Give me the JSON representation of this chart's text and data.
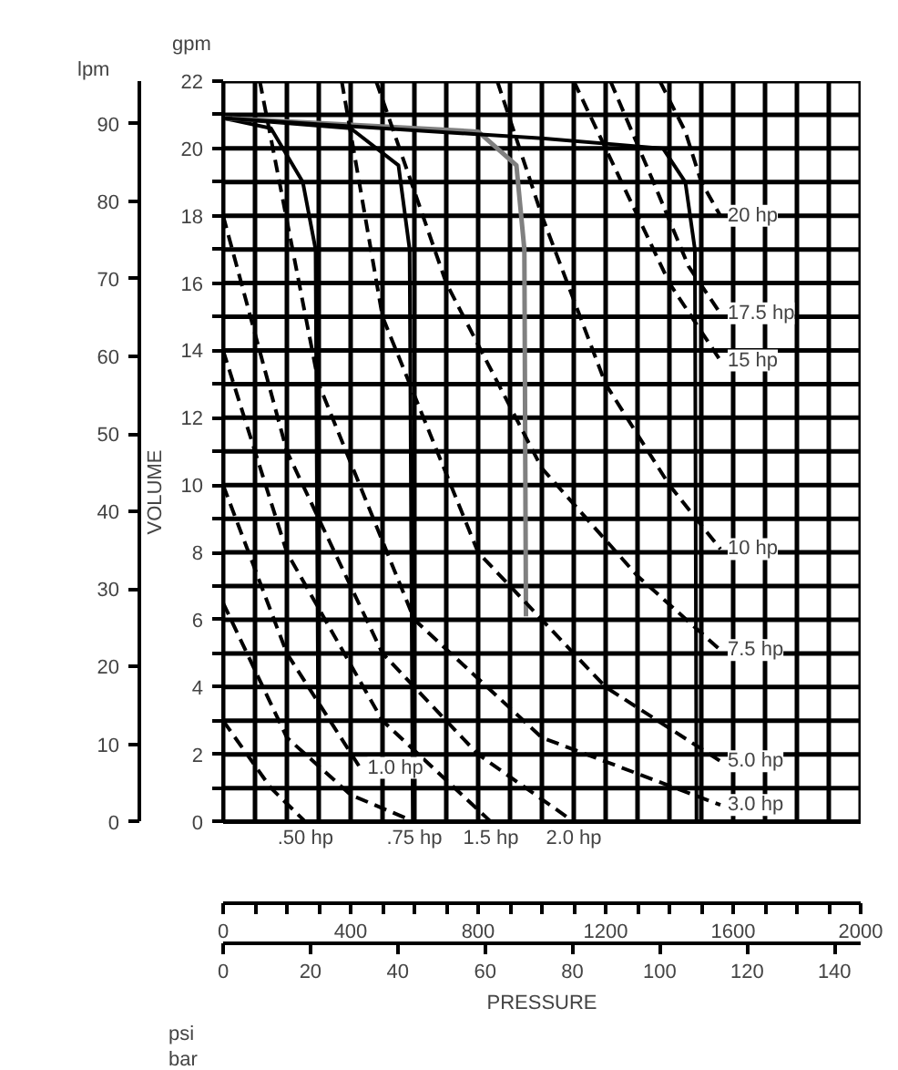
{
  "chart_data": {
    "type": "line",
    "xlabel": "PRESSURE",
    "ylabel": "VOLUME",
    "annotations": [
      "lpm",
      "gpm",
      "psi",
      "bar"
    ],
    "xlim": [
      0,
      2000
    ],
    "ylim": [
      0,
      22
    ],
    "x2lim": [
      0,
      146
    ],
    "y2lim": [
      0,
      95.5
    ],
    "xticks": [
      0,
      {
        "value": 100,
        "label": null
      },
      {
        "value": 200,
        "label": null
      },
      {
        "value": 300,
        "label": null
      },
      400,
      {
        "value": 500,
        "label": null
      },
      {
        "value": 600,
        "label": null
      },
      {
        "value": 700,
        "label": null
      },
      800,
      {
        "value": 900,
        "label": null
      },
      {
        "value": 1000,
        "label": null
      },
      {
        "value": 1100,
        "label": null
      },
      1200,
      {
        "value": 1300,
        "label": null
      },
      {
        "value": 1400,
        "label": null
      },
      {
        "value": 1500,
        "label": null
      },
      1600,
      {
        "value": 1700,
        "label": null
      },
      {
        "value": 1800,
        "label": null
      },
      {
        "value": 1900,
        "label": null
      },
      2000
    ],
    "yticks": [
      0,
      {
        "value": 1,
        "label": null
      },
      2,
      {
        "value": 3,
        "label": null
      },
      4,
      {
        "value": 5,
        "label": null
      },
      6,
      {
        "value": 7,
        "label": null
      },
      8,
      {
        "value": 9,
        "label": null
      },
      10,
      {
        "value": 11,
        "label": null
      },
      12,
      {
        "value": 13,
        "label": null
      },
      14,
      {
        "value": 15,
        "label": null
      },
      16,
      {
        "value": 17,
        "label": null
      },
      18,
      {
        "value": 19,
        "label": null
      },
      20,
      {
        "value": 21,
        "label": null
      },
      22
    ],
    "x2ticks": [
      0,
      20,
      40,
      60,
      80,
      100,
      120,
      140
    ],
    "y2ticks": [
      0,
      10,
      20,
      30,
      40,
      50,
      60,
      70,
      80,
      90
    ],
    "grid": true,
    "series": [
      {
        "color": "#000000",
        "line_style": "solid",
        "x": [
          0,
          150,
          250,
          290,
          300
        ],
        "values": [
          20.9,
          20.6,
          19.0,
          17.0,
          0
        ]
      },
      {
        "color": "#000000",
        "line_style": "solid",
        "x": [
          0,
          400,
          550,
          585,
          595
        ],
        "values": [
          20.9,
          20.6,
          19.5,
          17.0,
          0
        ]
      },
      {
        "color": "#808080",
        "line_style": "solid",
        "x": [
          0,
          800,
          920,
          945,
          950
        ],
        "values": [
          20.9,
          20.5,
          19.5,
          17.0,
          6.1
        ]
      },
      {
        "color": "#000000",
        "line_style": "solid",
        "x": [
          0,
          1000,
          1380,
          1450,
          1480,
          1485
        ],
        "values": [
          20.9,
          20.3,
          20.0,
          19.0,
          17.0,
          0
        ]
      },
      {
        "name": "20 hp",
        "color": "#000000",
        "line_style": "dashed",
        "x": [
          1370,
          1450,
          1500,
          1560
        ],
        "values": [
          22,
          20.5,
          19.0,
          18.0
        ]
      },
      {
        "name": "17.5 hp",
        "color": "#000000",
        "line_style": "dashed",
        "x": [
          1215,
          1350,
          1460,
          1560
        ],
        "values": [
          22,
          19.0,
          16.5,
          15.1
        ]
      },
      {
        "name": "15 hp",
        "color": "#000000",
        "line_style": "dashed",
        "x": [
          1100,
          1250,
          1400,
          1560
        ],
        "values": [
          22,
          19.0,
          16.0,
          13.7
        ]
      },
      {
        "name": "10 hp",
        "color": "#000000",
        "line_style": "dashed",
        "x": [
          860,
          1000,
          1200,
          1400,
          1560
        ],
        "values": [
          22,
          18.0,
          13.0,
          10.0,
          8.1
        ]
      },
      {
        "name": "7.5 hp",
        "color": "#000000",
        "line_style": "dashed",
        "x": [
          480,
          700,
          1000,
          1300,
          1560
        ],
        "values": [
          22,
          16.0,
          10.5,
          7.3,
          5.1
        ]
      },
      {
        "name": "5.0 hp",
        "color": "#000000",
        "line_style": "dashed",
        "x": [
          372,
          500,
          800,
          1200,
          1560
        ],
        "values": [
          22,
          15.0,
          8.0,
          4.0,
          1.8
        ]
      },
      {
        "name": "3.0 hp",
        "color": "#000000",
        "line_style": "dashed",
        "x": [
          115,
          300,
          600,
          1000,
          1560
        ],
        "values": [
          22,
          13.0,
          6.0,
          2.5,
          0.5
        ]
      },
      {
        "name": "2.0 hp",
        "color": "#000000",
        "line_style": "dashed",
        "x": [
          0,
          200,
          500,
          800,
          1100
        ],
        "values": [
          18,
          11,
          5,
          2,
          0
        ]
      },
      {
        "name": "1.5 hp",
        "color": "#000000",
        "line_style": "dashed",
        "x": [
          0,
          200,
          500,
          840
        ],
        "values": [
          14,
          8,
          3,
          0
        ]
      },
      {
        "name": "1.0 hp",
        "color": "#000000",
        "line_style": "dashed",
        "x": [
          0,
          200,
          430
        ],
        "values": [
          10,
          5,
          1.6
        ]
      },
      {
        "name": ".75 hp",
        "color": "#000000",
        "line_style": "dashed",
        "x": [
          0,
          200,
          400,
          600
        ],
        "values": [
          6.5,
          2.5,
          0.8,
          0
        ]
      },
      {
        "name": ".50 hp",
        "color": "#000000",
        "line_style": "dashed",
        "x": [
          0,
          150,
          258
        ],
        "values": [
          3,
          1,
          0
        ]
      }
    ]
  }
}
